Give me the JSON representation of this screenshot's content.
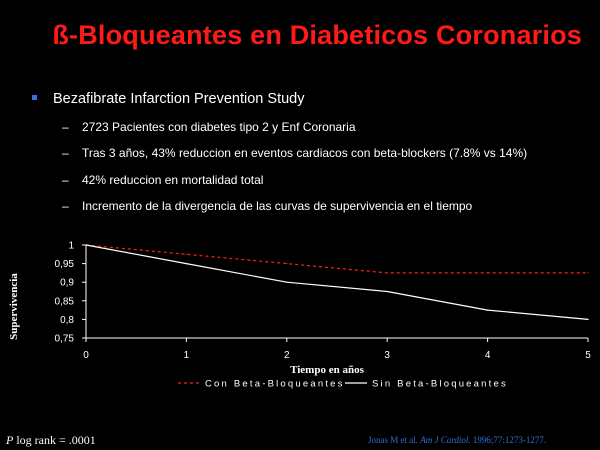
{
  "slide": {
    "title": "ß-Bloqueantes en Diabeticos Coronarios",
    "bullet": "Bezafibrate Infarction Prevention Study",
    "sub_items": [
      "2723 Pacientes con diabetes tipo 2 y Enf Coronaria",
      "Tras 3 años,  43% reduccion en eventos cardiacos con beta-blockers (7.8% vs 14%)",
      "42% reduccion en mortalidad total",
      "Incremento de la divergencia de las curvas de supervivencia en el tiempo"
    ],
    "footer_left_italic": "P",
    "footer_left_rest": " log rank = .0001",
    "footer_right_prefix": "Jonas M et al. ",
    "footer_right_italic": "Am J Cardiol.",
    "footer_right_suffix": " 1996;77:1273-1277."
  },
  "colors": {
    "title": "#ff1a1a",
    "bullet_square": "#3f6fd6",
    "series_con": "#ff2020",
    "series_sin": "#ffffff",
    "citation": "#2f6fd0"
  },
  "chart_data": {
    "type": "line",
    "xlabel": "Tiempo en años",
    "ylabel": "Supervivencia",
    "xlim": [
      0,
      5
    ],
    "ylim": [
      0.75,
      1
    ],
    "x_ticks": [
      0,
      1,
      2,
      3,
      4,
      5
    ],
    "x_tick_labels": [
      "0",
      "1",
      "2",
      "3",
      "4",
      "5"
    ],
    "y_ticks": [
      0.75,
      0.8,
      0.85,
      0.9,
      0.95,
      1
    ],
    "y_tick_labels": [
      "0,75",
      "0,8",
      "0,85",
      "0,9",
      "0,95",
      "1"
    ],
    "legend_position": "bottom",
    "series": [
      {
        "name": "Con Beta-Bloqueantes",
        "style": "dashed",
        "x": [
          0,
          1,
          2,
          3,
          4,
          5
        ],
        "y": [
          1.0,
          0.975,
          0.95,
          0.925,
          0.925,
          0.925
        ]
      },
      {
        "name": "Sin Beta-Bloqueantes",
        "style": "solid",
        "x": [
          0,
          1,
          2,
          3,
          4,
          5
        ],
        "y": [
          1.0,
          0.95,
          0.9,
          0.875,
          0.825,
          0.8
        ]
      }
    ]
  }
}
